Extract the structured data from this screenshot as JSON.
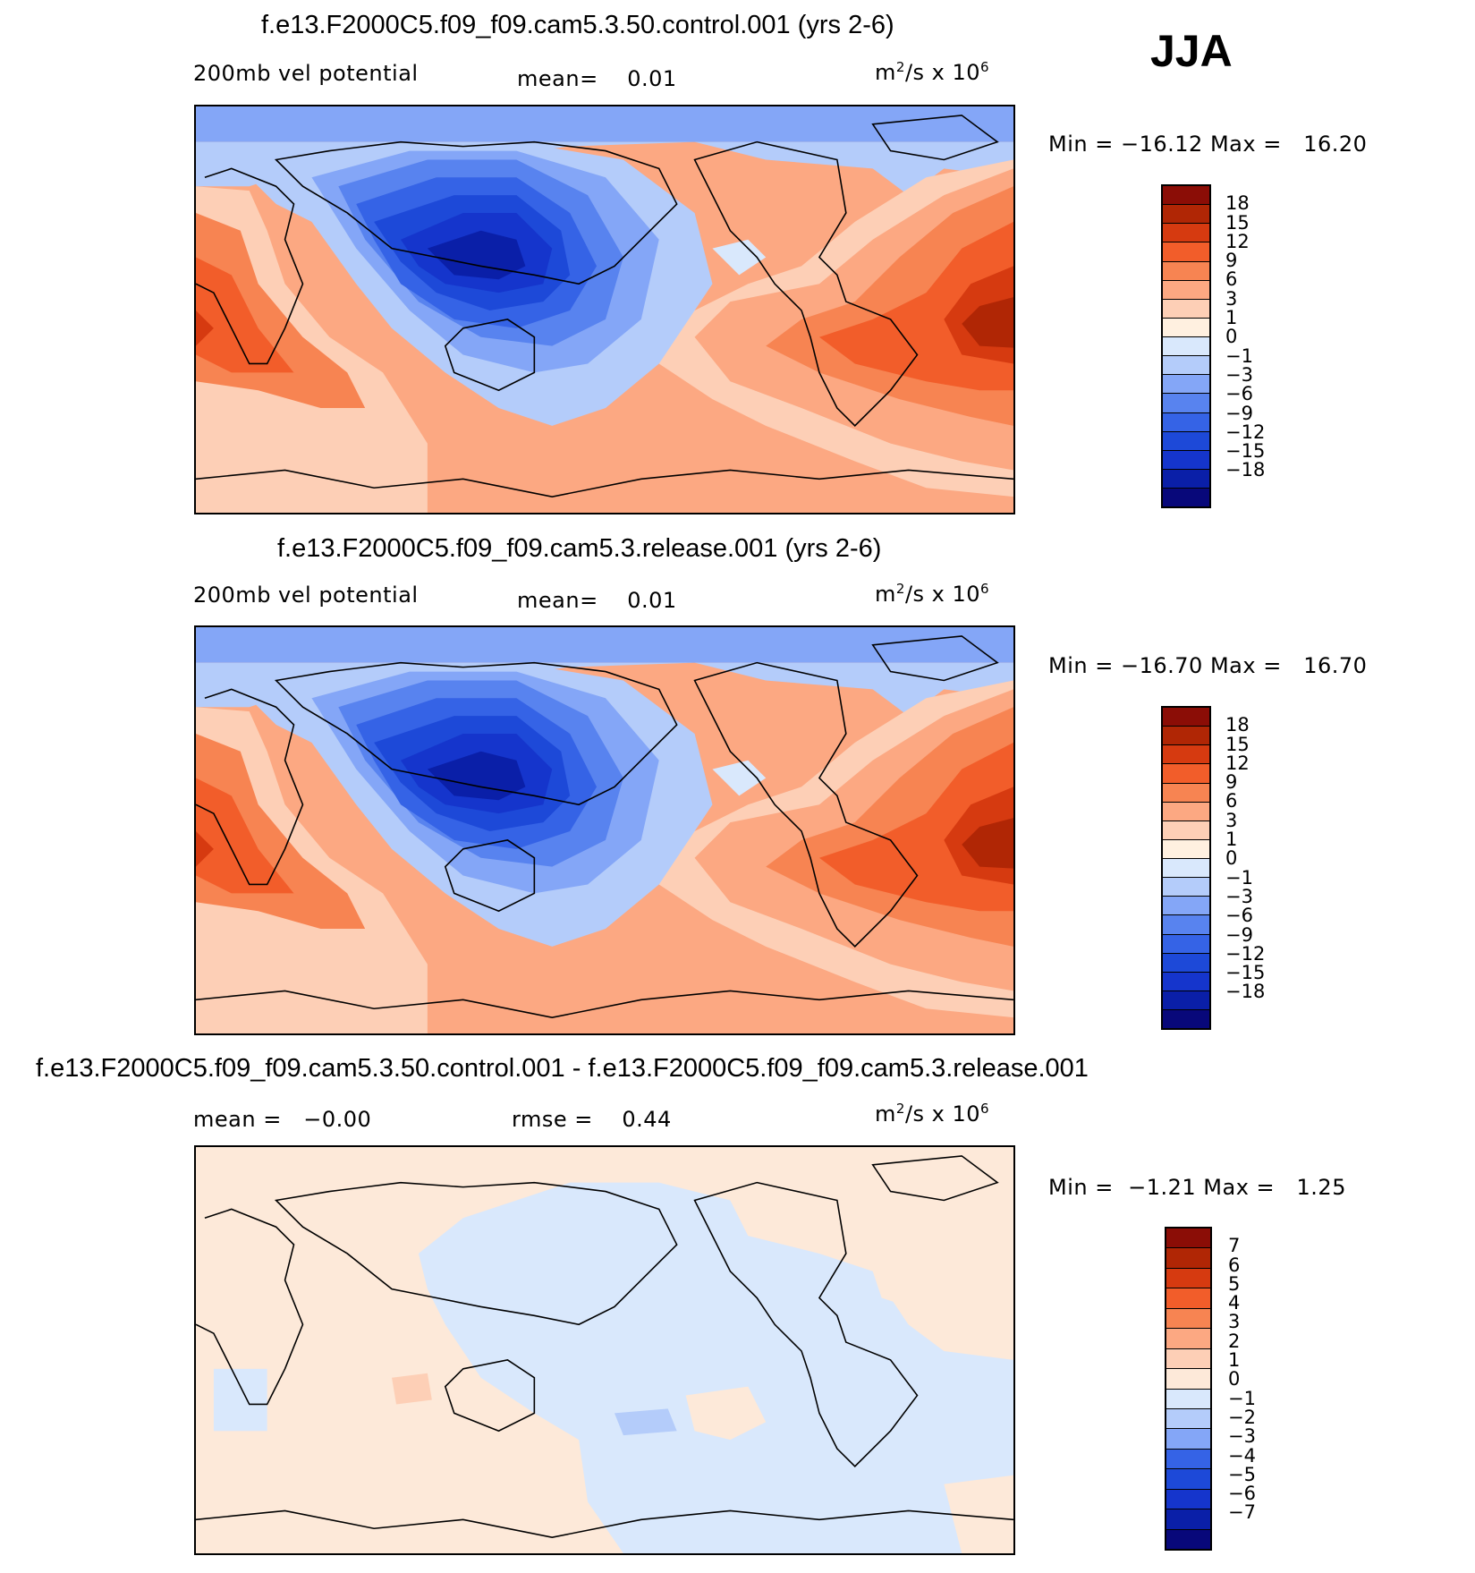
{
  "season": "JJA",
  "colors": {
    "main": [
      "#08087a",
      "#0a1fa8",
      "#1535cc",
      "#1d49d8",
      "#3563e6",
      "#5883ef",
      "#84a6f7",
      "#b4ccfa",
      "#d9e8fc",
      "#fff0e0",
      "#fdcfb6",
      "#fca882",
      "#f78452",
      "#f25d2a",
      "#d63a10",
      "#b02605",
      "#8b0d06"
    ],
    "diff": [
      "#08087a",
      "#0a1fa8",
      "#1535cc",
      "#1d49d8",
      "#3563e6",
      "#84a6f7",
      "#b4ccfa",
      "#d9e8fc",
      "#fde9d9",
      "#fdcfb6",
      "#fca882",
      "#f78452",
      "#f25d2a",
      "#d63a10",
      "#b02605",
      "#8b0d06"
    ]
  },
  "panels": [
    {
      "title": "f.e13.F2000C5.f09_f09.cam5.3.50.control.001 (yrs 2-6)",
      "field_label": "200mb vel potential",
      "stat_label": "mean=",
      "stat_value": "0.01",
      "units_base": "m",
      "units_exp": "2",
      "units_mid": "/s x 10",
      "units_power": "6",
      "min_label": "Min",
      "min_value": "−16.12",
      "max_label": "Max",
      "max_value": "16.20",
      "colorbar_labels": [
        "18",
        "15",
        "12",
        "9",
        "6",
        "3",
        "1",
        "0",
        "−1",
        "−3",
        "−6",
        "−9",
        "−12",
        "−15",
        "−18"
      ]
    },
    {
      "title": "f.e13.F2000C5.f09_f09.cam5.3.release.001 (yrs 2-6)",
      "field_label": "200mb vel potential",
      "stat_label": "mean=",
      "stat_value": "0.01",
      "units_base": "m",
      "units_exp": "2",
      "units_mid": "/s x 10",
      "units_power": "6",
      "min_label": "Min",
      "min_value": "−16.70",
      "max_label": "Max",
      "max_value": "16.70",
      "colorbar_labels": [
        "18",
        "15",
        "12",
        "9",
        "6",
        "3",
        "1",
        "0",
        "−1",
        "−3",
        "−6",
        "−9",
        "−12",
        "−15",
        "−18"
      ]
    },
    {
      "title": "f.e13.F2000C5.f09_f09.cam5.3.50.control.001 - f.e13.F2000C5.f09_f09.cam5.3.release.001",
      "field_label": "mean =",
      "field_value": "−0.00",
      "stat_label": "rmse =",
      "stat_value": "0.44",
      "units_base": "m",
      "units_exp": "2",
      "units_mid": "/s x 10",
      "units_power": "6",
      "min_label": "Min",
      "min_value": "−1.21",
      "max_label": "Max",
      "max_value": "1.25",
      "colorbar_labels": [
        "7",
        "6",
        "5",
        "4",
        "3",
        "2",
        "1",
        "0",
        "−1",
        "−2",
        "−3",
        "−4",
        "−5",
        "−6",
        "−7"
      ]
    }
  ]
}
